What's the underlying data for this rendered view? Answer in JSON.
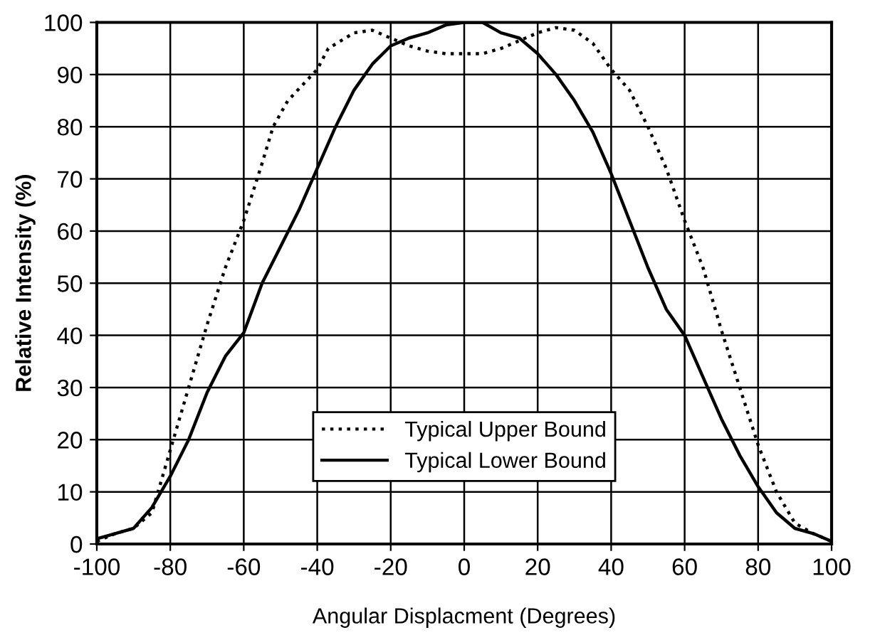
{
  "chart_data": {
    "type": "line",
    "xlabel": "Angular Displacment (Degrees)",
    "ylabel": "Relative Intensity (%)",
    "xlim": [
      -100,
      100
    ],
    "ylim": [
      0,
      100
    ],
    "xticks": [
      -100,
      -80,
      -60,
      -40,
      -20,
      0,
      20,
      40,
      60,
      80,
      100
    ],
    "yticks": [
      0,
      10,
      20,
      30,
      40,
      50,
      60,
      70,
      80,
      90,
      100
    ],
    "grid": true,
    "legend": "bottom",
    "marker": "none",
    "series": [
      {
        "name": "Typical Upper Bound",
        "color": "#000000",
        "line_style": "dotted",
        "x": [
          -100,
          -95,
          -90,
          -85,
          -80,
          -75,
          -70,
          -65,
          -60,
          -55,
          -52,
          -48,
          -44,
          -40,
          -37,
          -30,
          -25,
          -20,
          -15,
          -10,
          -5,
          0,
          5,
          10,
          15,
          20,
          25,
          30,
          35,
          40,
          45,
          50,
          55,
          60,
          65,
          70,
          75,
          80,
          85,
          90,
          95,
          100
        ],
        "values": [
          0.5,
          2,
          3,
          6,
          18,
          30,
          42,
          53,
          62,
          73,
          80,
          85,
          88,
          91,
          95,
          98,
          98.5,
          97,
          95.5,
          94.5,
          94,
          94,
          94,
          95,
          96.5,
          98,
          99,
          98.5,
          96,
          91,
          87,
          80,
          72,
          62,
          53,
          41,
          30,
          19,
          10,
          4,
          2,
          0.5
        ]
      },
      {
        "name": "Typical Lower Bound",
        "color": "#000000",
        "line_style": "solid",
        "x": [
          -100,
          -95,
          -90,
          -85,
          -80,
          -75,
          -70,
          -65,
          -60,
          -55,
          -50,
          -45,
          -40,
          -35,
          -30,
          -25,
          -20,
          -15,
          -10,
          -5,
          0,
          5,
          10,
          15,
          20,
          25,
          30,
          35,
          40,
          45,
          50,
          55,
          60,
          65,
          70,
          75,
          80,
          85,
          90,
          95,
          100
        ],
        "values": [
          1,
          2,
          3,
          7,
          13,
          20,
          29,
          36,
          40.5,
          50,
          57,
          64,
          72,
          80,
          87,
          92,
          95.5,
          97,
          98,
          99.5,
          100,
          100,
          98,
          97,
          94,
          90,
          85,
          79,
          71,
          62,
          53,
          45,
          40,
          32,
          24,
          17,
          11,
          6,
          3,
          2,
          0.5
        ]
      }
    ]
  }
}
